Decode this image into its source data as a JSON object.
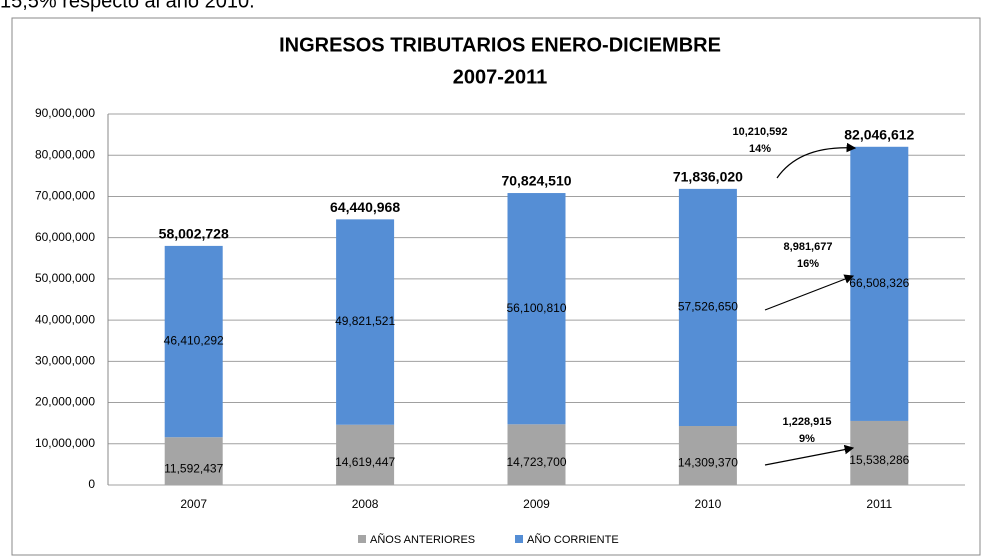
{
  "header_text": "15,5% respecto al año 2010.",
  "chart_data": {
    "type": "stacked_bar",
    "title": "INGRESOS TRIBUTARIOS  ENERO-DICIEMBRE",
    "subtitle": "2007-2011",
    "categories": [
      "2007",
      "2008",
      "2009",
      "2010",
      "2011"
    ],
    "series": [
      {
        "name": "AÑOS ANTERIORES",
        "color": "#a5a5a5",
        "values": [
          11592437,
          14619447,
          14723700,
          14309370,
          15538286
        ],
        "value_labels": [
          "11,592,437",
          "14,619,447",
          "14,723,700",
          "14,309,370",
          "15,538,286"
        ]
      },
      {
        "name": "AÑO CORRIENTE",
        "color": "#558ed5",
        "values": [
          46410292,
          49821521,
          56100810,
          57526650,
          66508326
        ],
        "value_labels": [
          "46,410,292",
          "49,821,521",
          "56,100,810",
          "57,526,650",
          "66,508,326"
        ]
      }
    ],
    "totals": [
      "58,002,728",
      "64,440,968",
      "70,824,510",
      "71,836,020",
      "82,046,612"
    ],
    "annotations": [
      {
        "value": "10,210,592",
        "percent": "14%"
      },
      {
        "value": "8,981,677",
        "percent": "16%"
      },
      {
        "value": "1,228,915",
        "percent": "9%"
      }
    ],
    "ylim": [
      0,
      90000000
    ],
    "yticks": [
      {
        "value": 0,
        "label": "0"
      },
      {
        "value": 10000000,
        "label": "10,000,000"
      },
      {
        "value": 20000000,
        "label": "20,000,000"
      },
      {
        "value": 30000000,
        "label": "30,000,000"
      },
      {
        "value": 40000000,
        "label": "40,000,000"
      },
      {
        "value": 50000000,
        "label": "50,000,000"
      },
      {
        "value": 60000000,
        "label": "60,000,000"
      },
      {
        "value": 70000000,
        "label": "70,000,000"
      },
      {
        "value": 80000000,
        "label": "80,000,000"
      },
      {
        "value": 90000000,
        "label": "90,000,000"
      }
    ],
    "grid": true,
    "legend": "bottom"
  }
}
